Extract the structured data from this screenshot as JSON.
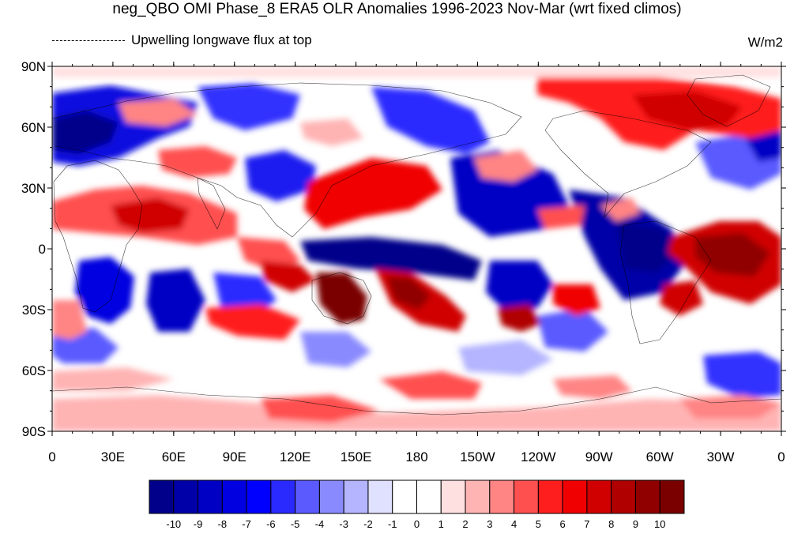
{
  "header": {
    "title": "neg_QBO OMI Phase_8 ERA5 OLR Anomalies 1996-2023 Nov-Mar (wrt fixed climos)",
    "variable": "Upwelling longwave flux at top",
    "units": "W/m2"
  },
  "map": {
    "projection": "cylindrical equidistant",
    "lon_range": [
      0,
      360
    ],
    "lat_range": [
      -90,
      90
    ],
    "lat_labels": [
      "90N",
      "60N",
      "30N",
      "0",
      "30S",
      "60S",
      "90S"
    ],
    "lon_labels": [
      "0",
      "30E",
      "60E",
      "90E",
      "120E",
      "150E",
      "180",
      "150W",
      "120W",
      "90W",
      "60W",
      "30W",
      "0"
    ]
  },
  "colorbar": {
    "labels": [
      "-10",
      "-9",
      "-8",
      "-7",
      "-6",
      "-5",
      "-4",
      "-3",
      "-2",
      "-1",
      "0",
      "1",
      "2",
      "3",
      "4",
      "5",
      "6",
      "7",
      "8",
      "9",
      "10"
    ],
    "colors": [
      "#00008a",
      "#0000a8",
      "#0000c5",
      "#0000e0",
      "#0000ff",
      "#2a2aff",
      "#5a5aff",
      "#8a8aff",
      "#b4b4ff",
      "#e0e0ff",
      "#ffffff",
      "#ffffff",
      "#ffe0e0",
      "#ffb4b4",
      "#ff8484",
      "#ff5050",
      "#ff1e1e",
      "#f00000",
      "#d00000",
      "#b00000",
      "#900000",
      "#7a0000"
    ]
  }
}
